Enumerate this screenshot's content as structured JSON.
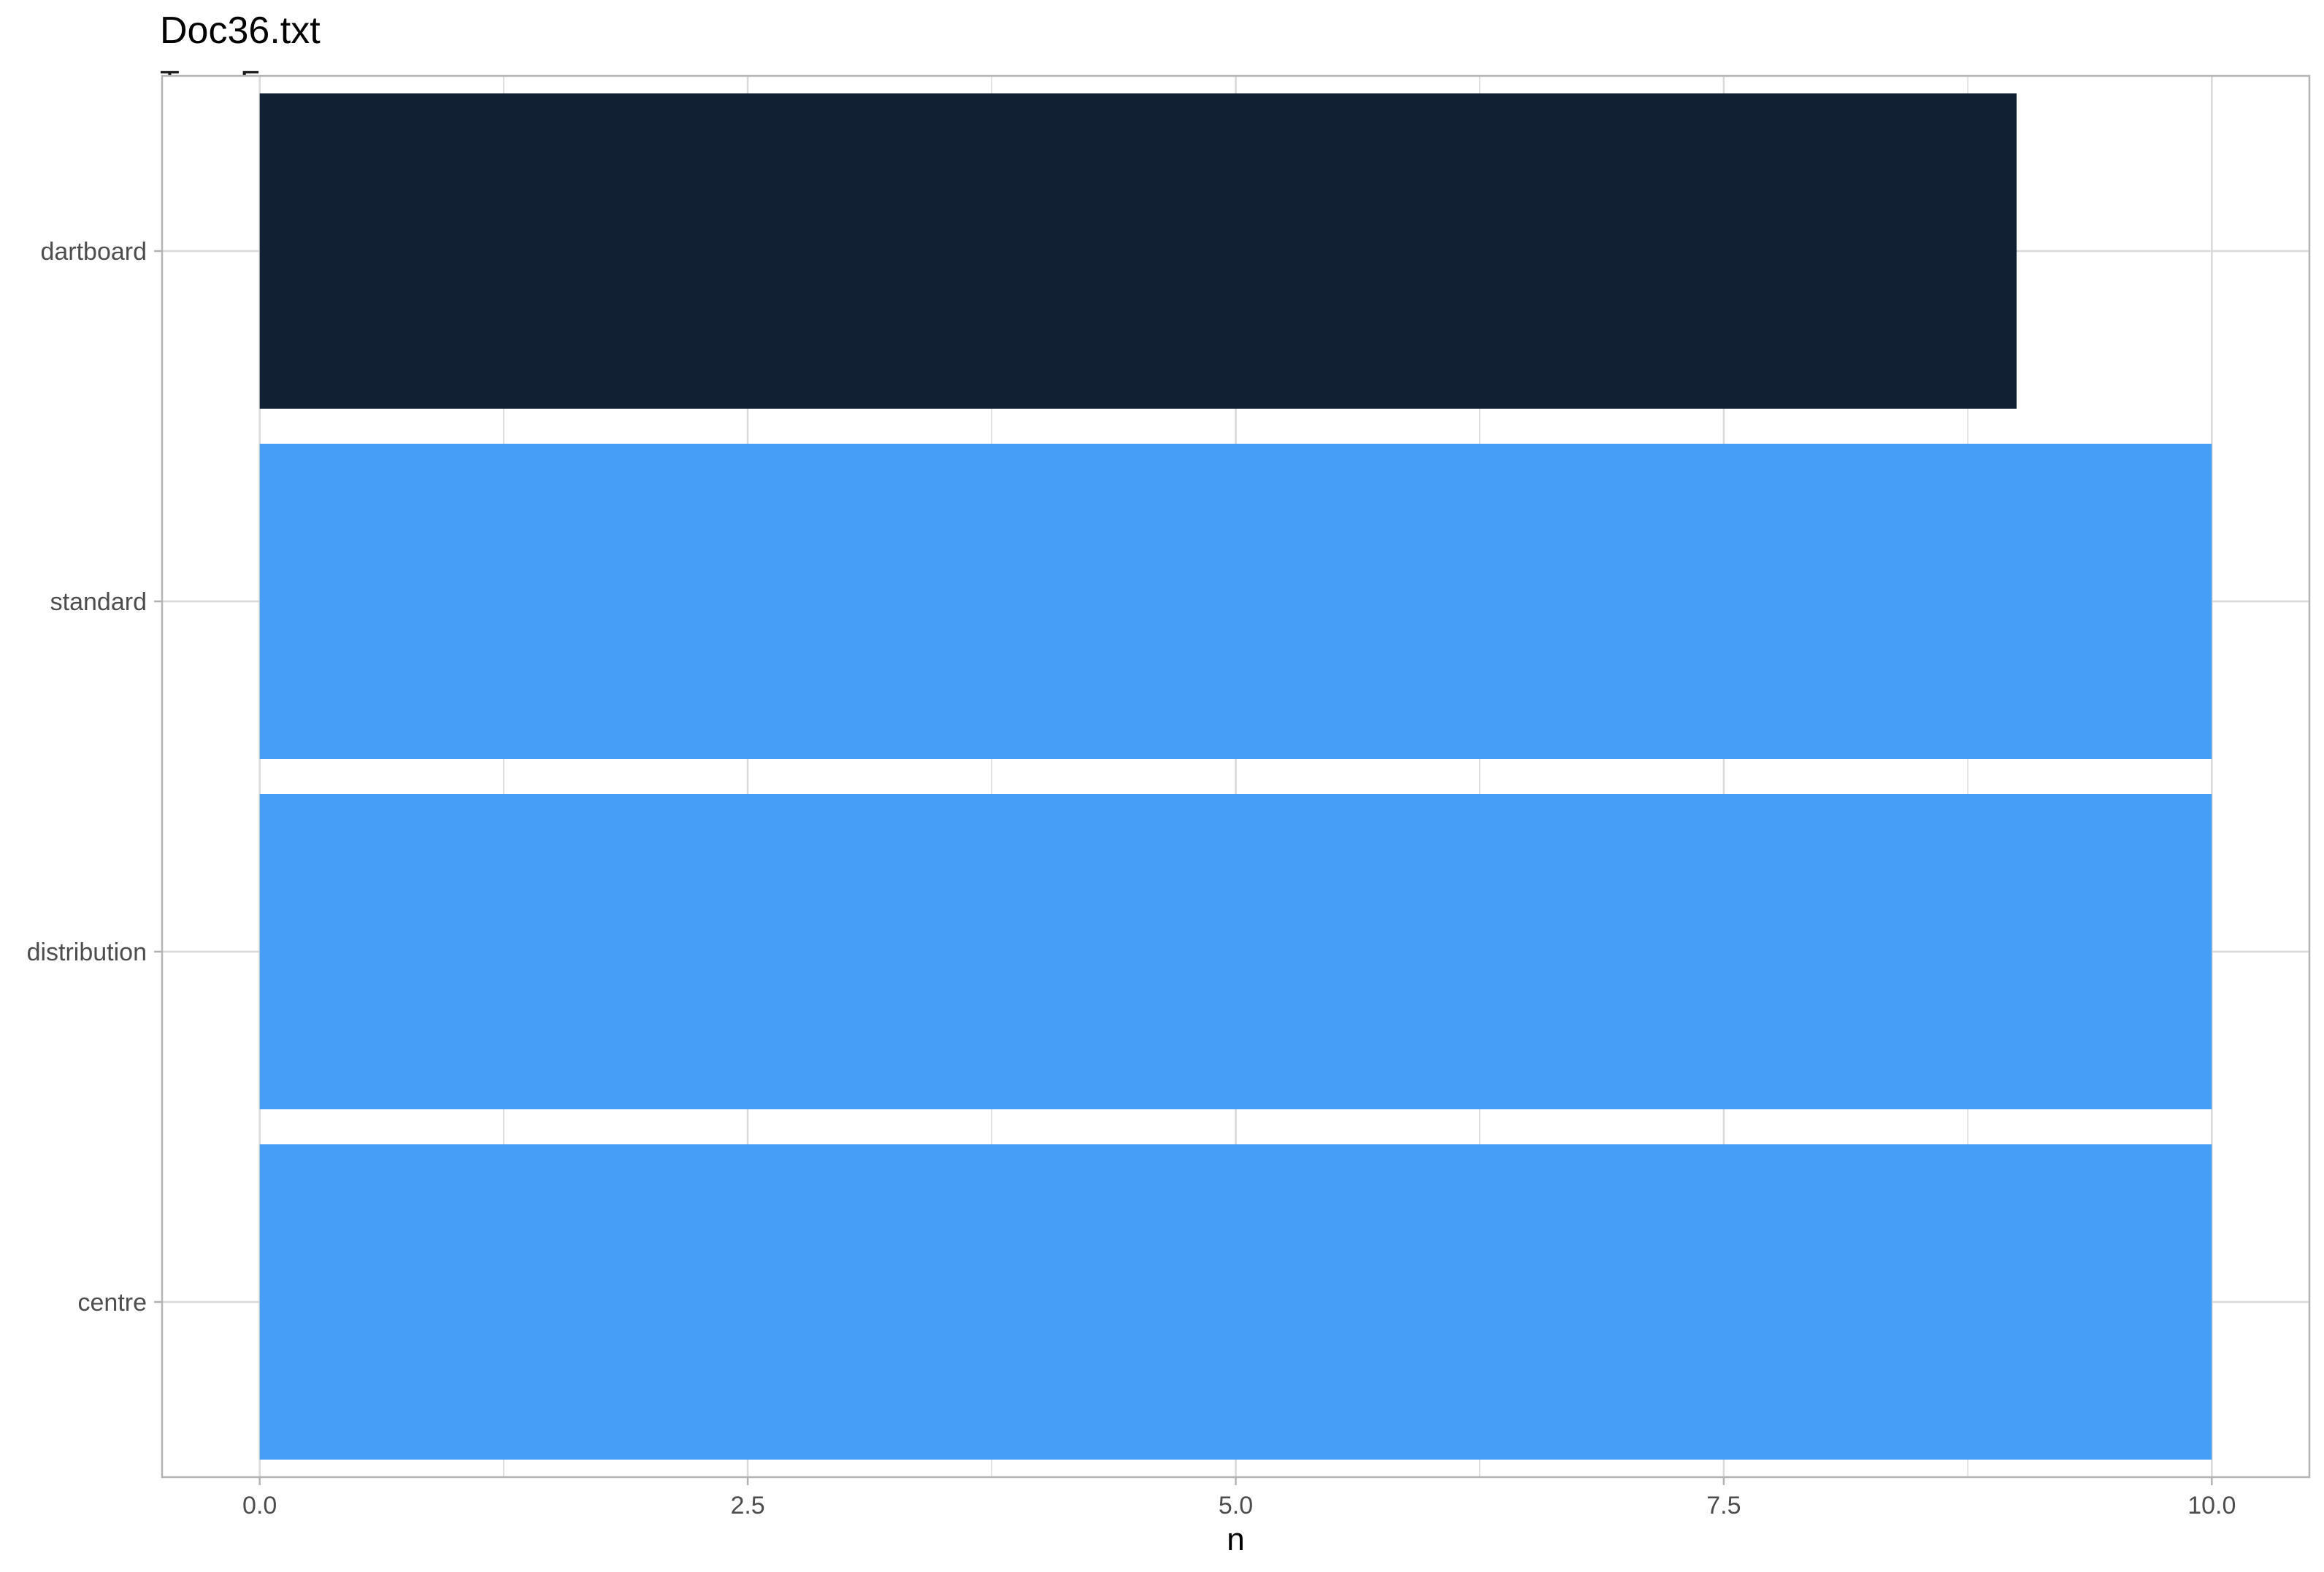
{
  "chart_data": {
    "type": "bar",
    "orientation": "horizontal",
    "title": "Doc36.txt",
    "subtitle": "Term Frequency",
    "xlabel": "n",
    "ylabel": "",
    "categories": [
      "dartboard",
      "standard",
      "distribution",
      "centre"
    ],
    "values": [
      9,
      10,
      10,
      10
    ],
    "highlight": "dartboard",
    "xlim": [
      -0.5,
      10.5
    ],
    "xticks": [
      0.0,
      2.5,
      5.0,
      7.5,
      10.0
    ],
    "xtick_labels": [
      "0.0",
      "2.5",
      "5.0",
      "7.5",
      "10.0"
    ],
    "grid": true,
    "legend": "none",
    "colors": {
      "highlight": "#112133",
      "bar": "#479ff5",
      "grid": "#d9d9d9",
      "panel_border": "#b3b3b3",
      "tick_text": "#4d4d4d"
    }
  }
}
